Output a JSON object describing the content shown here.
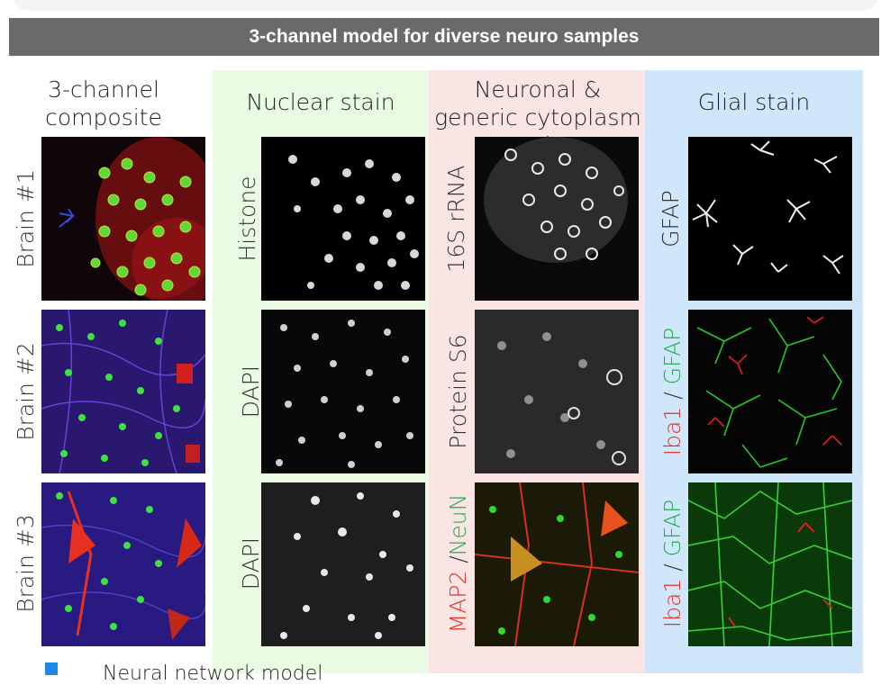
{
  "title": "3-channel model for diverse neuro samples",
  "columns": {
    "composite": "3-channel composite",
    "nuclear": "Nuclear stain",
    "neuronal": "Neuronal & generic cytoplasm stain",
    "glial": "Glial stain"
  },
  "rows": {
    "r1": "Brain #1",
    "r2": "Brain #2",
    "r3": "Brain #3"
  },
  "stains": {
    "r1_nuclear": "Histone",
    "r1_neuronal": "16S rRNA",
    "r1_glial": "GFAP",
    "r2_nuclear": "DAPI",
    "r2_neuronal": "Protein S6",
    "r2_glial_a": "Iba1",
    "r2_glial_sep": " / ",
    "r2_glial_b": "GFAP",
    "r3_nuclear": "DAPI",
    "r3_neuronal_a": "MAP2",
    "r3_neuronal_sep": " /",
    "r3_neuronal_b": "NeuN",
    "r3_glial_a": "Iba1",
    "r3_glial_sep": " / ",
    "r3_glial_b": "GFAP"
  },
  "legend": {
    "label": "Neural network model"
  },
  "colors": {
    "title_bar": "#6a6a6a",
    "nuclear_bg": "#e9fbe2",
    "neuronal_bg": "#fbe4e4",
    "glial_bg": "#cfe6fb",
    "red_label": "#e1342a",
    "green_label": "#1fb24a",
    "legend_swatch": "#1e88e5"
  }
}
